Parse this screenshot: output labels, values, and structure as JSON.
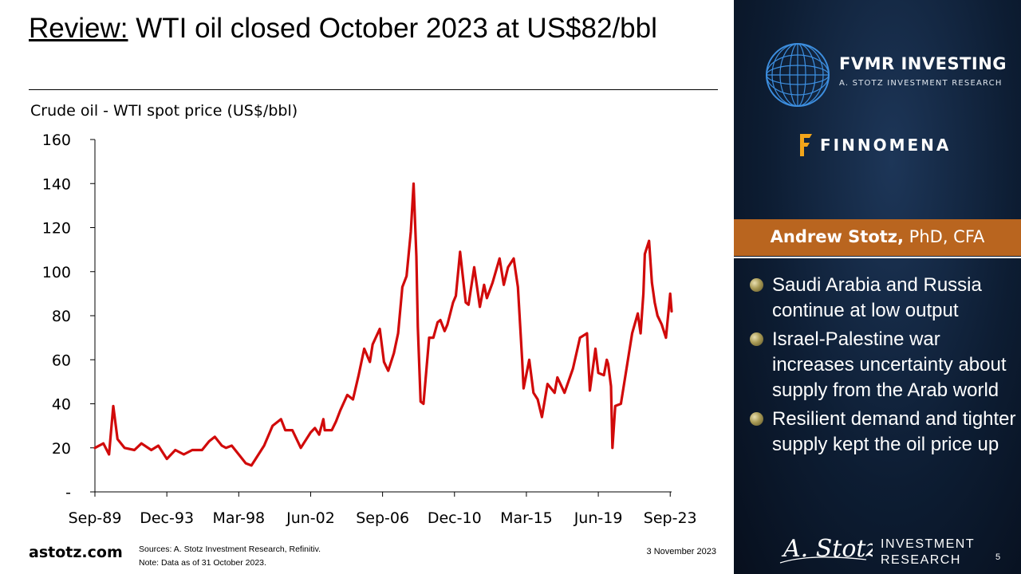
{
  "title": {
    "lead": "Review:",
    "rest": " WTI oil closed October 2023 at US$82/bbl"
  },
  "chart_label": "Crude oil - WTI spot price (US$/bbl)",
  "chart_data": {
    "type": "line",
    "title": "Crude oil - WTI spot price (US$/bbl)",
    "xlabel": "",
    "ylabel": "",
    "ylim": [
      0,
      160
    ],
    "xlim": [
      "Sep-89",
      "Oct-23"
    ],
    "grid": false,
    "y_ticks": [
      0,
      20,
      40,
      60,
      80,
      100,
      120,
      140,
      160
    ],
    "y_tick_labels": [
      "-",
      "20",
      "40",
      "60",
      "80",
      "100",
      "120",
      "140",
      "160"
    ],
    "x_ticks": [
      "1989-09",
      "1993-12",
      "1998-03",
      "2002-06",
      "2006-09",
      "2010-12",
      "2015-03",
      "2019-06",
      "2023-09"
    ],
    "x_tick_labels": [
      "Sep-89",
      "Dec-93",
      "Mar-98",
      "Jun-02",
      "Sep-06",
      "Dec-10",
      "Mar-15",
      "Jun-19",
      "Sep-23"
    ],
    "line_color": "#d10a0a",
    "series": [
      {
        "name": "",
        "x": [
          "1989-09",
          "1990-03",
          "1990-07",
          "1990-10",
          "1991-01",
          "1991-06",
          "1992-01",
          "1992-06",
          "1993-01",
          "1993-06",
          "1993-12",
          "1994-06",
          "1994-12",
          "1995-06",
          "1996-01",
          "1996-06",
          "1996-10",
          "1997-03",
          "1997-06",
          "1997-10",
          "1998-03",
          "1998-08",
          "1998-12",
          "1999-03",
          "1999-09",
          "2000-01",
          "2000-03",
          "2000-09",
          "2000-12",
          "2001-05",
          "2001-11",
          "2002-03",
          "2002-06",
          "2002-09",
          "2002-12",
          "2003-03",
          "2003-04",
          "2003-09",
          "2003-12",
          "2004-03",
          "2004-08",
          "2004-12",
          "2005-04",
          "2005-08",
          "2005-12",
          "2006-02",
          "2006-07",
          "2006-10",
          "2007-01",
          "2007-05",
          "2007-08",
          "2007-11",
          "2008-02",
          "2008-05",
          "2008-07",
          "2008-09",
          "2008-10",
          "2008-12",
          "2009-02",
          "2009-06",
          "2009-09",
          "2009-12",
          "2010-02",
          "2010-05",
          "2010-07",
          "2010-11",
          "2011-01",
          "2011-04",
          "2011-08",
          "2011-10",
          "2012-02",
          "2012-06",
          "2012-09",
          "2012-11",
          "2013-03",
          "2013-08",
          "2013-11",
          "2014-02",
          "2014-06",
          "2014-09",
          "2014-12",
          "2015-01",
          "2015-05",
          "2015-08",
          "2015-11",
          "2016-02",
          "2016-06",
          "2016-11",
          "2017-01",
          "2017-06",
          "2017-12",
          "2018-05",
          "2018-10",
          "2018-12",
          "2019-04",
          "2019-06",
          "2019-10",
          "2019-12",
          "2020-01",
          "2020-03",
          "2020-04",
          "2020-06",
          "2020-10",
          "2021-01",
          "2021-06",
          "2021-10",
          "2021-12",
          "2022-02",
          "2022-03",
          "2022-06",
          "2022-08",
          "2022-10",
          "2022-12",
          "2023-03",
          "2023-06",
          "2023-09",
          "2023-10"
        ],
        "values": [
          20,
          22,
          17,
          39,
          24,
          20,
          19,
          22,
          19,
          21,
          15,
          19,
          17,
          19,
          19,
          23,
          25,
          21,
          20,
          21,
          17,
          13,
          12,
          15,
          21,
          27,
          30,
          33,
          28,
          28,
          20,
          24,
          27,
          29,
          26,
          33,
          28,
          28,
          32,
          37,
          44,
          42,
          53,
          65,
          59,
          67,
          74,
          59,
          55,
          63,
          72,
          93,
          98,
          118,
          140,
          107,
          75,
          41,
          40,
          70,
          70,
          77,
          78,
          73,
          76,
          86,
          89,
          109,
          86,
          85,
          102,
          84,
          94,
          88,
          95,
          106,
          94,
          102,
          106,
          93,
          60,
          47,
          60,
          45,
          42,
          34,
          49,
          45,
          52,
          45,
          56,
          70,
          72,
          46,
          65,
          54,
          53,
          60,
          58,
          48,
          20,
          39,
          40,
          52,
          72,
          81,
          72,
          90,
          108,
          114,
          95,
          86,
          80,
          76,
          70,
          90,
          82
        ]
      }
    ]
  },
  "footer": {
    "site": "astotz.com",
    "sources": "Sources: A. Stotz Investment Research, Refinitiv.",
    "note": "Note: Data as of 31 October 2023.",
    "date": "3 November 2023",
    "page": "5"
  },
  "panel": {
    "brand1": "FVMR INVESTING",
    "brand1_sub": "A. STOTZ INVESTMENT RESEARCH",
    "brand2": "FINNOMENA",
    "author_name": "Andrew Stotz,",
    "author_cred": " PhD, CFA",
    "bullets": [
      "Saudi Arabia and Russia continue at low output",
      "Israel-Palestine war increases uncertainty about supply from the Arab world",
      "Resilient demand and tighter supply kept the oil price up"
    ],
    "invest_line1": "INVESTMENT",
    "invest_line2": "RESEARCH",
    "signature_text": "A. Stotz"
  },
  "colors": {
    "panel_bg": "#0d1d33",
    "author_band": "#b9651f",
    "line": "#d10a0a"
  }
}
